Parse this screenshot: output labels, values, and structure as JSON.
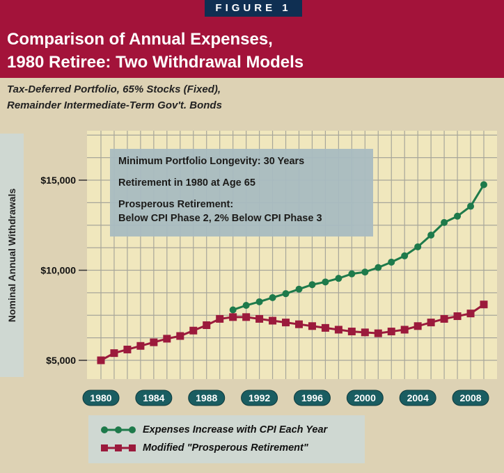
{
  "figure_tag": "FIGURE 1",
  "title_lines": [
    "Comparison of Annual Expenses,",
    "1980 Retiree: Two Withdrawal Models"
  ],
  "subtitle_lines": [
    "Tax-Deferred Portfolio, 65% Stocks (Fixed),",
    "Remainder Intermediate-Term Gov't. Bonds"
  ],
  "note_lines": [
    "Minimum Portfolio Longevity: 30 Years",
    "Retirement in 1980 at Age 65",
    "Prosperous Retirement:",
    "Below CPI Phase 2, 2% Below CPI Phase 3"
  ],
  "colors": {
    "banner": "#a3133a",
    "figure_tag": "#0f2f52",
    "plot_bg": "#f0e7bd",
    "grid": "#a7a69a",
    "green": "#1e7a4b",
    "red": "#9b1a3c",
    "year_pill": "#1a5d61"
  },
  "chart_data": {
    "type": "line",
    "title": "Comparison of Annual Expenses, 1980 Retiree: Two Withdrawal Models",
    "xlabel": "",
    "ylabel": "Nominal Annual Withdrawals",
    "xlim": [
      1980,
      2009
    ],
    "ylim": [
      4500,
      17000
    ],
    "y_ticks": [
      5000,
      10000,
      15000
    ],
    "y_tick_labels": [
      "$5,000",
      "$10,000",
      "$15,000"
    ],
    "x_ticks": [
      1980,
      1984,
      1988,
      1992,
      1996,
      2000,
      2004,
      2008
    ],
    "x_tick_labels": [
      "1980",
      "1984",
      "1988",
      "1992",
      "1996",
      "2000",
      "2004",
      "2008"
    ],
    "grid": true,
    "legend_position": "bottom",
    "series": [
      {
        "name": "Expenses Increase with CPI Each Year",
        "color": "#1e7a4b",
        "marker": "circle",
        "x": [
          1990,
          1991,
          1992,
          1993,
          1994,
          1995,
          1996,
          1997,
          1998,
          1999,
          2000,
          2001,
          2002,
          2003,
          2004,
          2005,
          2006,
          2007,
          2008,
          2009
        ],
        "values": [
          7800,
          8050,
          8250,
          8480,
          8700,
          8950,
          9200,
          9350,
          9550,
          9800,
          9900,
          10150,
          10450,
          10800,
          11300,
          11950,
          12650,
          13000,
          13550,
          14750
        ]
      },
      {
        "name": "Modified \"Prosperous Retirement\"",
        "color": "#9b1a3c",
        "marker": "square",
        "x": [
          1980,
          1981,
          1982,
          1983,
          1984,
          1985,
          1986,
          1987,
          1988,
          1989,
          1990,
          1991,
          1992,
          1993,
          1994,
          1995,
          1996,
          1997,
          1998,
          1999,
          2000,
          2001,
          2002,
          2003,
          2004,
          2005,
          2006,
          2007,
          2008,
          2009
        ],
        "values": [
          5000,
          5400,
          5600,
          5800,
          6000,
          6200,
          6350,
          6650,
          6950,
          7300,
          7400,
          7400,
          7300,
          7200,
          7100,
          7000,
          6900,
          6800,
          6700,
          6600,
          6550,
          6500,
          6600,
          6700,
          6900,
          7100,
          7300,
          7450,
          7600,
          8100
        ]
      }
    ]
  }
}
